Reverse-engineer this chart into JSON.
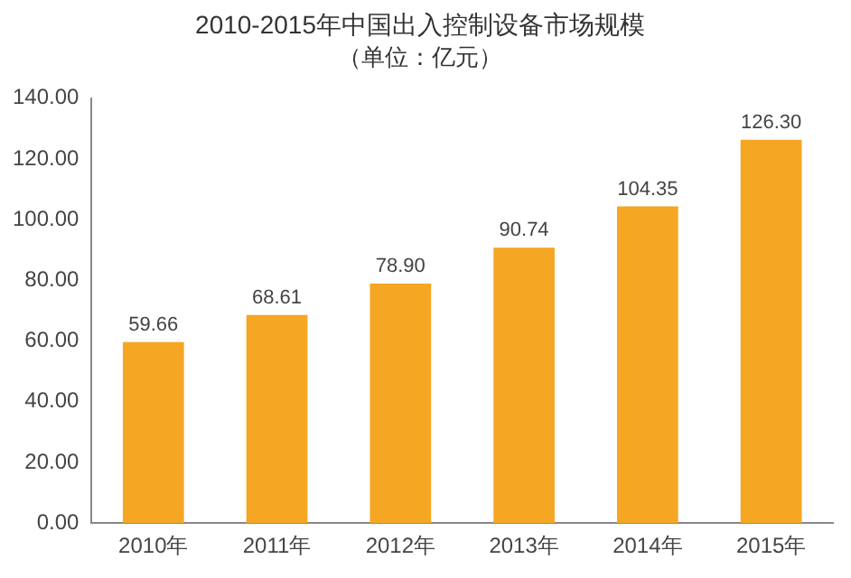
{
  "chart_data": {
    "type": "bar",
    "title": "2010-2015年中国出入控制设备市场规模",
    "subtitle": "（单位：亿元）",
    "categories": [
      "2010年",
      "2011年",
      "2012年",
      "2013年",
      "2014年",
      "2015年"
    ],
    "values": [
      59.66,
      68.61,
      78.9,
      90.74,
      104.35,
      126.3
    ],
    "color": "#f5a623",
    "ylim": [
      0,
      140
    ],
    "yticks": [
      {
        "value": 0,
        "label": "0.00"
      },
      {
        "value": 20,
        "label": "20.00"
      },
      {
        "value": 40,
        "label": "40.00"
      },
      {
        "value": 60,
        "label": "60.00"
      },
      {
        "value": 80,
        "label": "80.00"
      },
      {
        "value": 100,
        "label": "100.00"
      },
      {
        "value": 120,
        "label": "120.00"
      },
      {
        "value": 140,
        "label": "140.00"
      }
    ],
    "value_labels": [
      "59.66",
      "68.61",
      "78.90",
      "90.74",
      "104.35",
      "126.30"
    ],
    "grid": false,
    "legend": false
  }
}
